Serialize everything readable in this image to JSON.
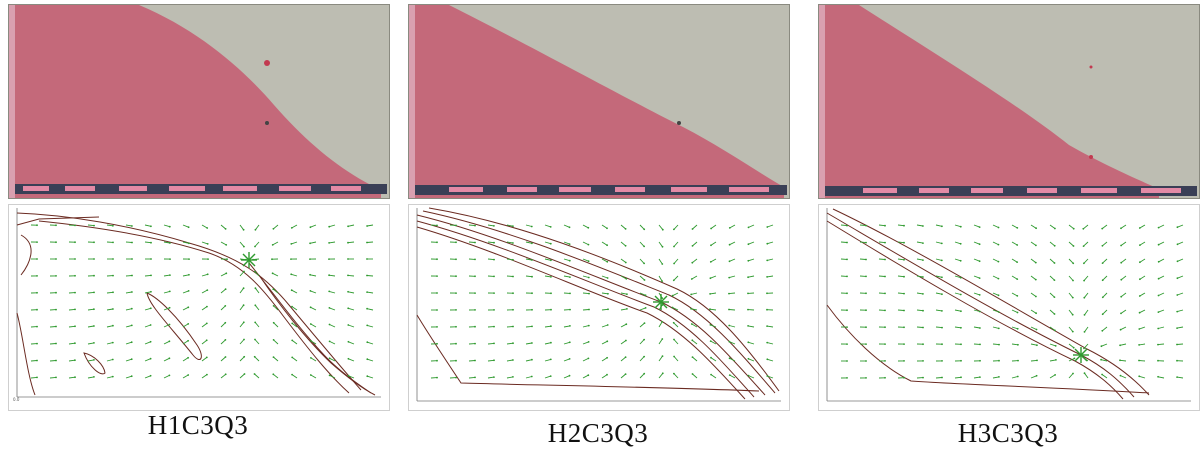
{
  "panels": [
    {
      "id": "H1C3Q3",
      "label": "H1C3Q3"
    },
    {
      "id": "H2C3Q3",
      "label": "H2C3Q3"
    },
    {
      "id": "H3C3Q3",
      "label": "H3C3Q3"
    }
  ],
  "colors": {
    "dyed_sand": "#c4697a",
    "clear_sand": "#b9b9ae",
    "contour_line": "#6b2b22",
    "velocity_arrow": "#2f9a2f",
    "ruler_band": "#3a3f56",
    "ruler_tape": "#e38aa6"
  },
  "icons": {
    "stagnation_point": "star-burst"
  }
}
